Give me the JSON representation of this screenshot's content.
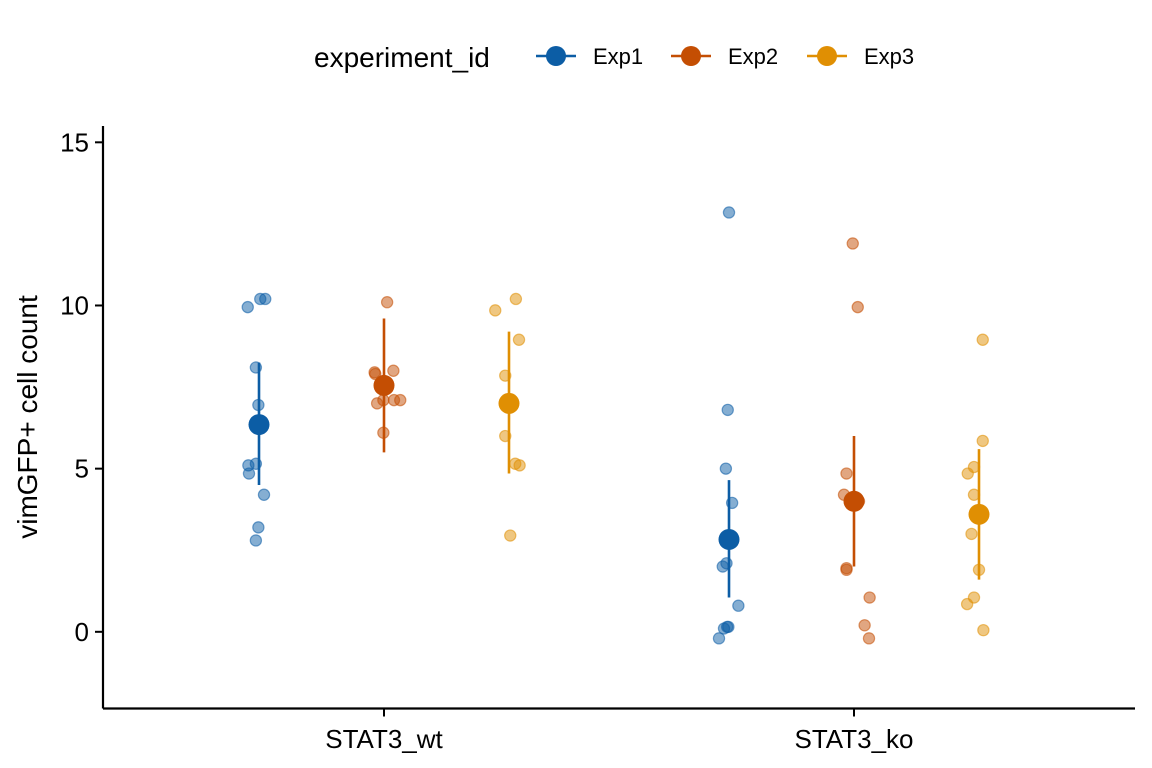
{
  "chart_data": {
    "type": "scatter",
    "subtype": "jittered points with mean and error bars",
    "ylabel": "vimGFP+ cell count",
    "xlabel": "",
    "ylim": [
      -2.35,
      15.5
    ],
    "yticks": [
      0,
      5,
      10,
      15
    ],
    "categories": [
      "STAT3_wt",
      "STAT3_ko"
    ],
    "legend": {
      "title": "experiment_id",
      "position": "top",
      "entries": [
        "Exp1",
        "Exp2",
        "Exp3"
      ]
    },
    "grid": false,
    "series": [
      {
        "name": "Exp1",
        "color": "#0C5DA5",
        "groups": [
          {
            "category": "STAT3_wt",
            "mean": 6.35,
            "lower": 4.5,
            "upper": 8.25,
            "points": [
              {
                "dx": -0.18,
                "y": 9.95
              },
              {
                "dx": 0.02,
                "y": 10.2
              },
              {
                "dx": 0.1,
                "y": 10.2
              },
              {
                "dx": -0.05,
                "y": 8.1
              },
              {
                "dx": -0.01,
                "y": 6.95
              },
              {
                "dx": -0.17,
                "y": 5.1
              },
              {
                "dx": -0.05,
                "y": 5.15
              },
              {
                "dx": -0.16,
                "y": 4.85
              },
              {
                "dx": 0.08,
                "y": 4.2
              },
              {
                "dx": -0.01,
                "y": 3.2
              },
              {
                "dx": -0.05,
                "y": 2.8
              }
            ]
          },
          {
            "category": "STAT3_ko",
            "mean": 2.83,
            "lower": 1.05,
            "upper": 4.65,
            "points": [
              {
                "dx": 0.0,
                "y": 12.85
              },
              {
                "dx": -0.02,
                "y": 6.8
              },
              {
                "dx": -0.05,
                "y": 5.0
              },
              {
                "dx": 0.05,
                "y": 3.95
              },
              {
                "dx": -0.04,
                "y": 2.1
              },
              {
                "dx": -0.1,
                "y": 2.0
              },
              {
                "dx": 0.15,
                "y": 0.8
              },
              {
                "dx": -0.03,
                "y": 0.15
              },
              {
                "dx": -0.01,
                "y": 0.15
              },
              {
                "dx": -0.08,
                "y": 0.1
              },
              {
                "dx": -0.16,
                "y": -0.2
              }
            ]
          }
        ]
      },
      {
        "name": "Exp2",
        "color": "#C44E03",
        "groups": [
          {
            "category": "STAT3_wt",
            "mean": 7.55,
            "lower": 5.5,
            "upper": 9.6,
            "points": [
              {
                "dx": 0.05,
                "y": 10.1
              },
              {
                "dx": 0.15,
                "y": 8.0
              },
              {
                "dx": -0.15,
                "y": 7.95
              },
              {
                "dx": -0.14,
                "y": 7.9
              },
              {
                "dx": -0.01,
                "y": 7.1
              },
              {
                "dx": 0.16,
                "y": 7.1
              },
              {
                "dx": 0.26,
                "y": 7.1
              },
              {
                "dx": -0.11,
                "y": 7.0
              },
              {
                "dx": -0.01,
                "y": 6.1
              }
            ]
          },
          {
            "category": "STAT3_ko",
            "mean": 4.0,
            "lower": 2.0,
            "upper": 6.0,
            "points": [
              {
                "dx": -0.02,
                "y": 11.9
              },
              {
                "dx": 0.06,
                "y": 9.95
              },
              {
                "dx": -0.12,
                "y": 4.85
              },
              {
                "dx": -0.16,
                "y": 4.2
              },
              {
                "dx": 0.08,
                "y": 4.0
              },
              {
                "dx": -0.12,
                "y": 1.95
              },
              {
                "dx": -0.12,
                "y": 1.9
              },
              {
                "dx": 0.25,
                "y": 1.05
              },
              {
                "dx": 0.17,
                "y": 0.2
              },
              {
                "dx": 0.24,
                "y": -0.2
              }
            ]
          }
        ]
      },
      {
        "name": "Exp3",
        "color": "#E08F03",
        "groups": [
          {
            "category": "STAT3_wt",
            "mean": 7.0,
            "lower": 4.85,
            "upper": 9.2,
            "points": [
              {
                "dx": 0.11,
                "y": 10.2
              },
              {
                "dx": -0.22,
                "y": 9.85
              },
              {
                "dx": 0.16,
                "y": 8.95
              },
              {
                "dx": -0.06,
                "y": 7.85
              },
              {
                "dx": -0.06,
                "y": 6.0
              },
              {
                "dx": 0.1,
                "y": 5.15
              },
              {
                "dx": 0.17,
                "y": 5.1
              },
              {
                "dx": 0.02,
                "y": 2.95
              }
            ]
          },
          {
            "category": "STAT3_ko",
            "mean": 3.6,
            "lower": 1.6,
            "upper": 5.6,
            "points": [
              {
                "dx": 0.06,
                "y": 8.95
              },
              {
                "dx": 0.06,
                "y": 5.85
              },
              {
                "dx": -0.08,
                "y": 5.05
              },
              {
                "dx": -0.18,
                "y": 4.85
              },
              {
                "dx": -0.08,
                "y": 4.2
              },
              {
                "dx": -0.12,
                "y": 3.0
              },
              {
                "dx": 0.0,
                "y": 1.9
              },
              {
                "dx": -0.08,
                "y": 1.05
              },
              {
                "dx": -0.19,
                "y": 0.85
              },
              {
                "dx": 0.07,
                "y": 0.05
              }
            ]
          }
        ]
      }
    ]
  }
}
